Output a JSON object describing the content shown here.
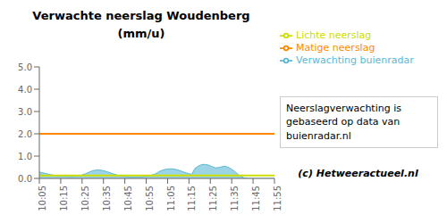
{
  "chart_data": {
    "type": "area",
    "title": "Verwachte neerslag Woudenberg (mm/u)",
    "x": [
      0,
      1,
      2,
      3,
      4,
      5,
      6,
      7,
      8,
      9,
      10,
      11,
      12,
      13,
      14,
      15,
      16,
      17,
      18,
      19,
      20,
      21,
      22,
      23,
      24,
      25,
      26,
      27,
      28,
      29,
      30,
      31,
      32,
      33,
      34,
      35,
      36,
      37,
      38,
      39,
      40,
      41,
      42,
      43,
      44,
      45,
      46,
      47,
      48,
      49,
      50,
      51,
      52,
      53,
      54,
      55,
      56,
      57,
      58,
      59,
      60,
      61,
      62,
      63,
      64,
      65,
      66,
      67,
      68,
      69,
      70,
      71
    ],
    "series": [
      {
        "name": "Verwachting buienradar",
        "type": "area",
        "color": "#5bb8d4",
        "values": [
          0.28,
          0.25,
          0.22,
          0.18,
          0.15,
          0.12,
          0.11,
          0.1,
          0.1,
          0.09,
          0.09,
          0.1,
          0.12,
          0.16,
          0.21,
          0.28,
          0.34,
          0.37,
          0.38,
          0.36,
          0.32,
          0.27,
          0.22,
          0.17,
          0.13,
          0.1,
          0.09,
          0.08,
          0.07,
          0.07,
          0.07,
          0.08,
          0.09,
          0.11,
          0.15,
          0.2,
          0.29,
          0.36,
          0.4,
          0.43,
          0.43,
          0.41,
          0.37,
          0.32,
          0.26,
          0.22,
          0.18,
          0.45,
          0.55,
          0.62,
          0.63,
          0.6,
          0.54,
          0.48,
          0.48,
          0.52,
          0.55,
          0.5,
          0.42,
          0.31,
          0.18,
          0.08,
          0.02,
          0.0,
          0.0,
          0.0,
          0.0,
          0.0,
          0.0,
          0.0,
          0.0,
          0.0
        ]
      },
      {
        "name": "Lichte neerslag",
        "type": "line",
        "color": "#ccdd00",
        "values": [
          0.13,
          0.13,
          0.13,
          0.13,
          0.13,
          0.13,
          0.13,
          0.13,
          0.13,
          0.13,
          0.13,
          0.13,
          0.13,
          0.13,
          0.13,
          0.13,
          0.13,
          0.13,
          0.13,
          0.13,
          0.13,
          0.13,
          0.13,
          0.13,
          0.13,
          0.13,
          0.13,
          0.13,
          0.13,
          0.13,
          0.13,
          0.13,
          0.13,
          0.13,
          0.13,
          0.13,
          0.13,
          0.13,
          0.13,
          0.13,
          0.13,
          0.13,
          0.13,
          0.13,
          0.13,
          0.13,
          0.13,
          0.13,
          0.13,
          0.13,
          0.13,
          0.13,
          0.13,
          0.13,
          0.13,
          0.13,
          0.13,
          0.13,
          0.13,
          0.13,
          0.13,
          0.13,
          0.13,
          0.13,
          0.13,
          0.13,
          0.13,
          0.13,
          0.13,
          0.13,
          0.13,
          0.13
        ]
      },
      {
        "name": "Matige neerslag",
        "type": "line",
        "color": "#ff8800",
        "values": [
          2.0,
          2.0,
          2.0,
          2.0,
          2.0,
          2.0,
          2.0,
          2.0,
          2.0,
          2.0,
          2.0,
          2.0,
          2.0,
          2.0,
          2.0,
          2.0,
          2.0,
          2.0,
          2.0,
          2.0,
          2.0,
          2.0,
          2.0,
          2.0,
          2.0,
          2.0,
          2.0,
          2.0,
          2.0,
          2.0,
          2.0,
          2.0,
          2.0,
          2.0,
          2.0,
          2.0,
          2.0,
          2.0,
          2.0,
          2.0,
          2.0,
          2.0,
          2.0,
          2.0,
          2.0,
          2.0,
          2.0,
          2.0,
          2.0,
          2.0,
          2.0,
          2.0,
          2.0,
          2.0,
          2.0,
          2.0,
          2.0,
          2.0,
          2.0,
          2.0,
          2.0,
          2.0,
          2.0,
          2.0,
          2.0,
          2.0,
          2.0,
          2.0,
          2.0,
          2.0,
          2.0,
          2.0
        ]
      }
    ],
    "xlim": [
      0,
      71
    ],
    "xticks": [
      {
        "value": 0,
        "label": "10:05"
      },
      {
        "value": 6.454545454545454,
        "label": "10:15"
      },
      {
        "value": 12.909090909090908,
        "label": "10:25"
      },
      {
        "value": 19.363636363636363,
        "label": "10:35"
      },
      {
        "value": 25.818181818181817,
        "label": "10:45"
      },
      {
        "value": 32.27272727272727,
        "label": "10:55"
      },
      {
        "value": 38.72727272727273,
        "label": "11:05"
      },
      {
        "value": 45.18181818181818,
        "label": "11:15"
      },
      {
        "value": 51.63636363636363,
        "label": "11:25"
      },
      {
        "value": 58.09090909090909,
        "label": "11:35"
      },
      {
        "value": 64.54545454545455,
        "label": "11:45"
      },
      {
        "value": 71,
        "label": "11:55"
      }
    ],
    "ylim": [
      0.0,
      5.0
    ],
    "yticks": [
      {
        "value": 0.0,
        "label": "0.0"
      },
      {
        "value": 1.0,
        "label": "1.0"
      },
      {
        "value": 2.0,
        "label": "2.0"
      },
      {
        "value": 3.0,
        "label": "3.0"
      },
      {
        "value": 4.0,
        "label": "4.0"
      },
      {
        "value": 5.0,
        "label": "5.0"
      }
    ],
    "grid": false,
    "annotations": [
      "Neerslagverwachting is\ngebaseerd op data van\nbuienradar.nl",
      "(c) Hetweeractueel.nl"
    ]
  }
}
